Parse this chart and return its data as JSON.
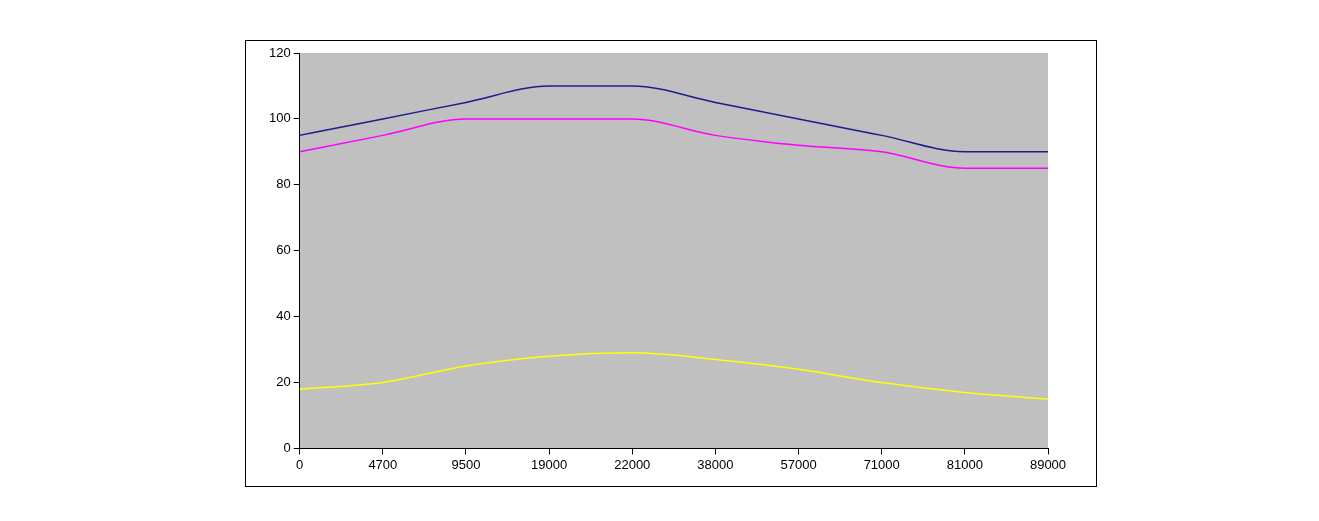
{
  "chart_data": {
    "type": "line",
    "categories": [
      "0",
      "4700",
      "9500",
      "19000",
      "22000",
      "38000",
      "57000",
      "71000",
      "81000",
      "89000"
    ],
    "series": [
      {
        "color": "#1c1c8c",
        "values": [
          95,
          100,
          105,
          110,
          110,
          105,
          100,
          95,
          90,
          90
        ]
      },
      {
        "color": "#ff00ff",
        "values": [
          90,
          95,
          100,
          100,
          100,
          95,
          92,
          90,
          85,
          85
        ]
      },
      {
        "color": "#ffff00",
        "values": [
          18,
          20,
          25,
          28,
          29,
          27,
          24,
          20,
          17,
          15
        ]
      }
    ],
    "ylim": [
      0,
      120
    ],
    "yticks": [
      0,
      20,
      40,
      60,
      80,
      100,
      120
    ],
    "grid": false,
    "legend": false,
    "marker": "none",
    "line_style": "solid"
  }
}
